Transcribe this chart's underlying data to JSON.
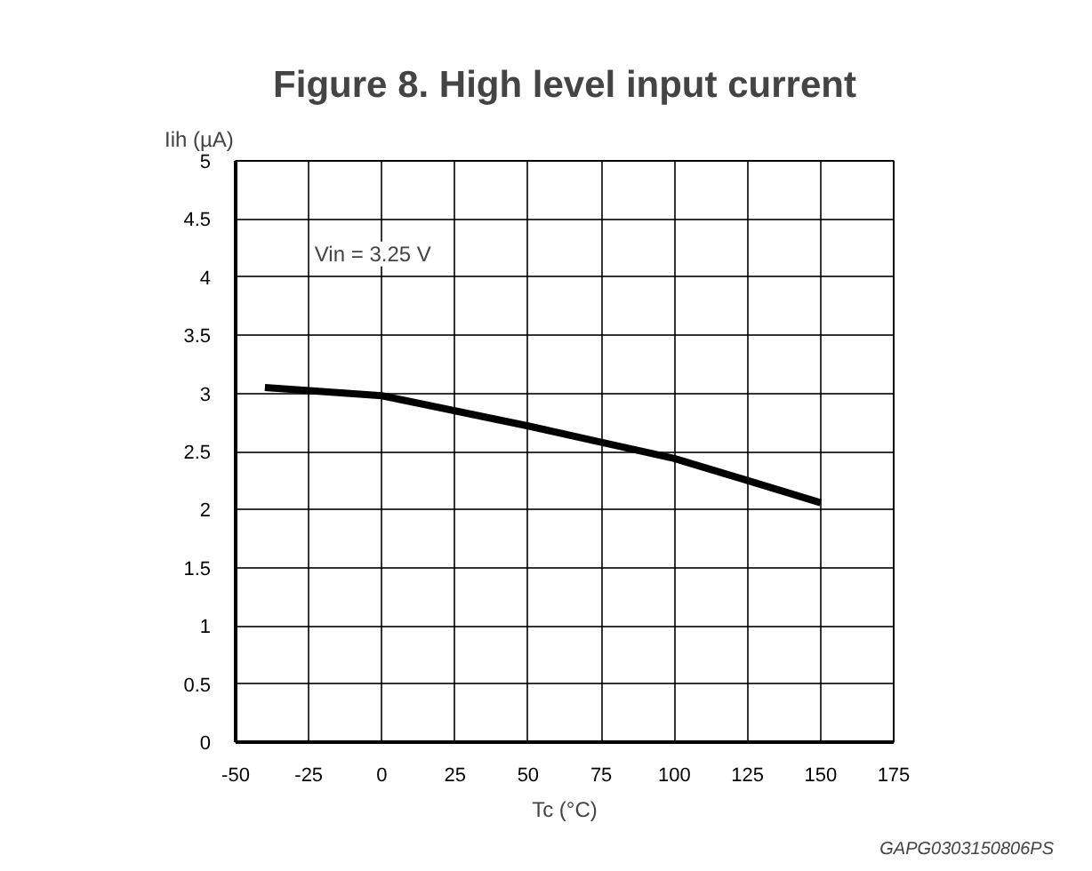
{
  "chart_data": {
    "type": "line",
    "title": "Figure 8. High level input current",
    "xlabel": "Tc (°C)",
    "ylabel": "Iih (µA)",
    "annotations": [
      "Vin = 3.25 V",
      "GAPG0303150806PS"
    ],
    "x": [
      -40,
      0,
      25,
      50,
      75,
      100,
      125,
      150
    ],
    "series": [
      {
        "color": "#000000",
        "values": [
          3.05,
          2.98,
          2.85,
          2.72,
          2.58,
          2.44,
          2.25,
          2.06
        ]
      }
    ],
    "xlim": [
      -50,
      175
    ],
    "xticks": [
      -50,
      -25,
      0,
      25,
      50,
      75,
      100,
      125,
      150,
      175
    ],
    "ylim": [
      0,
      5
    ],
    "yticks": [
      0,
      0.5,
      1,
      1.5,
      2,
      2.5,
      3,
      3.5,
      4,
      4.5,
      5
    ],
    "grid": true,
    "marker": "none",
    "line_style": "solid"
  }
}
